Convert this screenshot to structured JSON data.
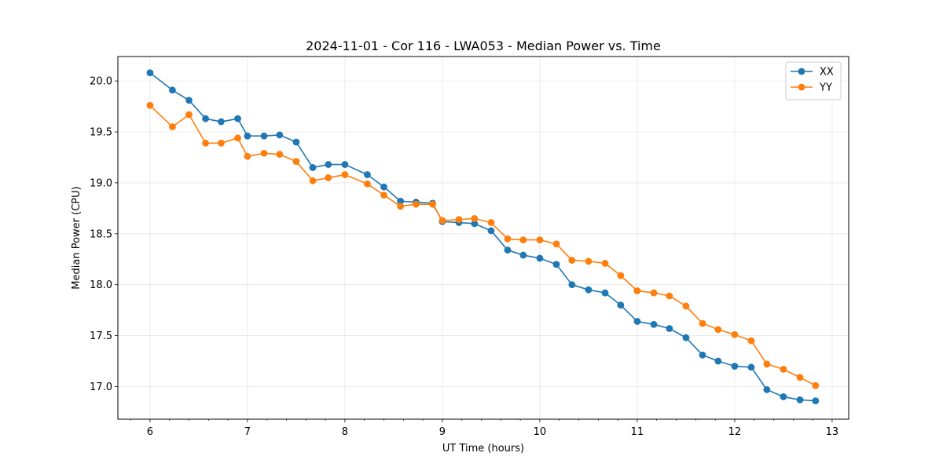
{
  "chart_data": {
    "type": "line",
    "title": "2024-11-01 - Cor 116 - LWA053 - Median Power vs. Time",
    "xlabel": "UT Time (hours)",
    "ylabel": "Median Power (CPU)",
    "xlim": [
      5.67,
      13.17
    ],
    "ylim": [
      16.68,
      20.24
    ],
    "xticks": [
      6,
      7,
      8,
      9,
      10,
      11,
      12,
      13
    ],
    "xtick_labels": [
      "6",
      "7",
      "8",
      "9",
      "10",
      "11",
      "12",
      "13"
    ],
    "yticks": [
      17.0,
      17.5,
      18.0,
      18.5,
      19.0,
      19.5,
      20.0
    ],
    "ytick_labels": [
      "17.0",
      "17.5",
      "18.0",
      "18.5",
      "19.0",
      "19.5",
      "20.0"
    ],
    "grid": true,
    "legend_position": "top-right",
    "x": [
      6.0,
      6.23,
      6.4,
      6.57,
      6.73,
      6.9,
      7.0,
      7.17,
      7.33,
      7.5,
      7.67,
      7.83,
      8.0,
      8.23,
      8.4,
      8.57,
      8.73,
      8.9,
      9.0,
      9.17,
      9.33,
      9.5,
      9.67,
      9.83,
      10.0,
      10.17,
      10.33,
      10.5,
      10.67,
      10.83,
      11.0,
      11.17,
      11.33,
      11.5,
      11.67,
      11.83,
      12.0,
      12.17,
      12.33,
      12.5,
      12.67,
      12.83
    ],
    "series": [
      {
        "name": "XX",
        "color": "#1f77b4",
        "values": [
          20.08,
          19.91,
          19.81,
          19.63,
          19.6,
          19.63,
          19.46,
          19.46,
          19.47,
          19.4,
          19.15,
          19.18,
          19.18,
          19.08,
          18.96,
          18.82,
          18.81,
          18.8,
          18.62,
          18.61,
          18.6,
          18.53,
          18.34,
          18.29,
          18.26,
          18.2,
          18.0,
          17.95,
          17.92,
          17.8,
          17.64,
          17.61,
          17.57,
          17.48,
          17.31,
          17.25,
          17.2,
          17.19,
          16.97,
          16.9,
          16.87,
          16.86
        ]
      },
      {
        "name": "YY",
        "color": "#ff7f0e",
        "values": [
          19.76,
          19.55,
          19.67,
          19.39,
          19.39,
          19.44,
          19.26,
          19.29,
          19.28,
          19.21,
          19.02,
          19.05,
          19.08,
          18.99,
          18.88,
          18.77,
          18.79,
          18.79,
          18.63,
          18.64,
          18.65,
          18.61,
          18.45,
          18.44,
          18.44,
          18.4,
          18.24,
          18.23,
          18.21,
          18.09,
          17.94,
          17.92,
          17.89,
          17.79,
          17.62,
          17.56,
          17.51,
          17.45,
          17.22,
          17.17,
          17.09,
          17.01
        ]
      }
    ]
  }
}
